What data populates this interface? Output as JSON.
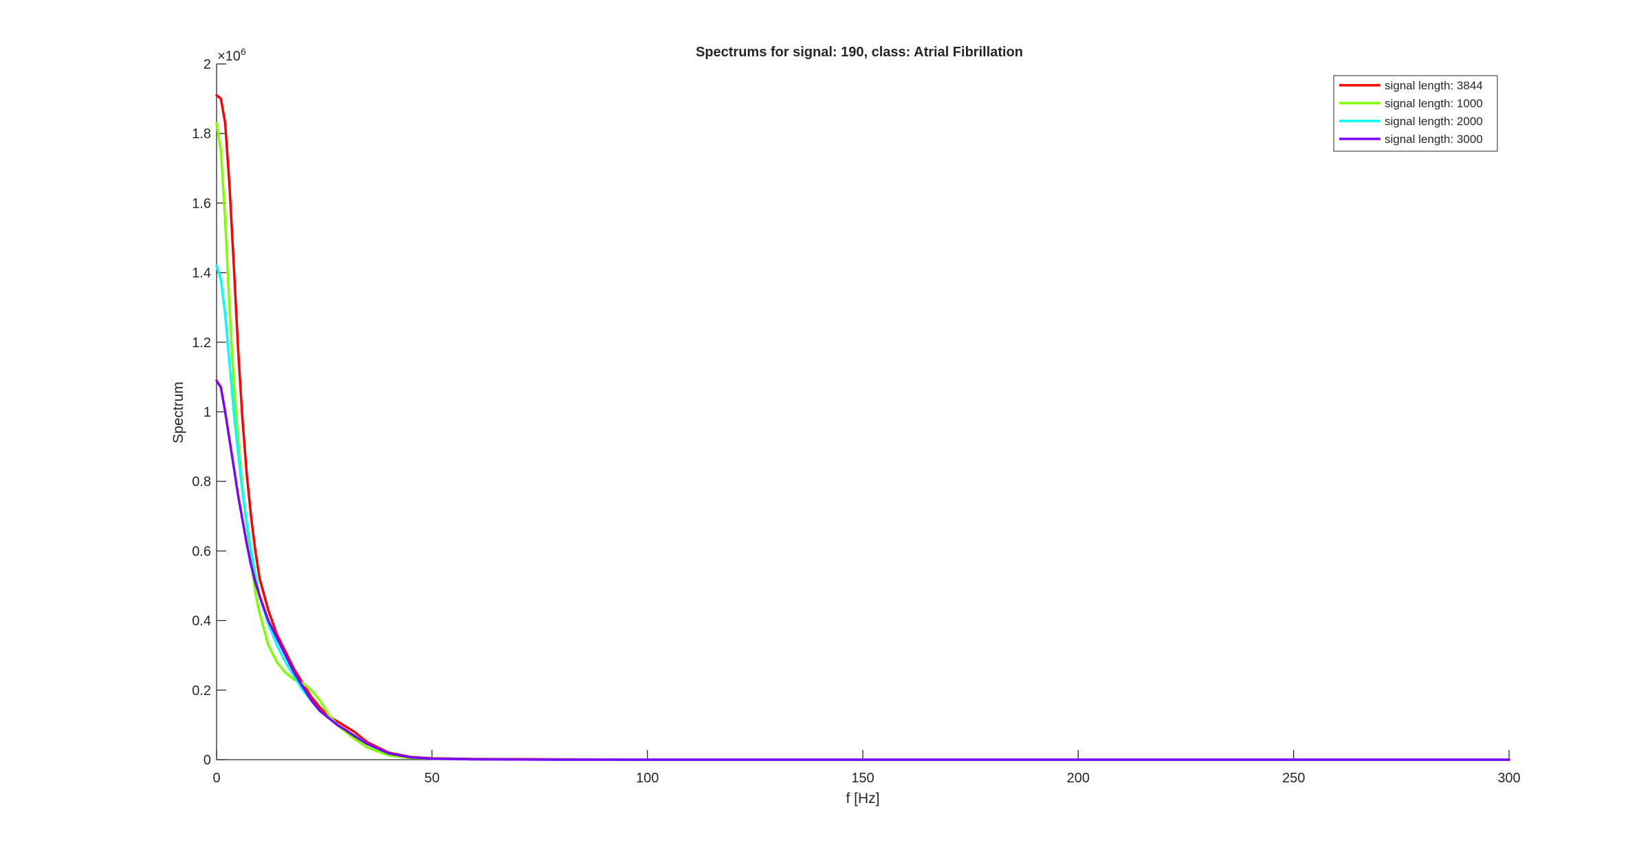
{
  "chart_data": {
    "type": "line",
    "title": "Spectrums for signal: 190, class: Atrial Fibrillation",
    "xlabel": "f [Hz]",
    "ylabel": "Spectrum",
    "y_exponent_label": "×10",
    "y_exponent_power": "6",
    "xlim": [
      0,
      300
    ],
    "ylim": [
      0,
      2
    ],
    "x_ticks": [
      0,
      50,
      100,
      150,
      200,
      250,
      300
    ],
    "x_tick_labels": [
      "0",
      "50",
      "100",
      "150",
      "200",
      "250",
      "300"
    ],
    "y_ticks": [
      0,
      0.2,
      0.4,
      0.6,
      0.8,
      1,
      1.2,
      1.4,
      1.6,
      1.8,
      2
    ],
    "y_tick_labels": [
      "0",
      "0.2",
      "0.4",
      "0.6",
      "0.8",
      "1",
      "1.2",
      "1.4",
      "1.6",
      "1.8",
      "2"
    ],
    "grid": false,
    "legend_position": "top-right",
    "series": [
      {
        "name": "signal length: 3844",
        "color": "#ff0000",
        "x": [
          0,
          1,
          2,
          3,
          4,
          5,
          6,
          7,
          8,
          9,
          10,
          12,
          14,
          16,
          18,
          20,
          22,
          24,
          26,
          28,
          30,
          32,
          35,
          40,
          45,
          50,
          60,
          80,
          100,
          150,
          200,
          250,
          300
        ],
        "y": [
          1.91,
          1.9,
          1.83,
          1.65,
          1.42,
          1.18,
          0.98,
          0.82,
          0.7,
          0.6,
          0.52,
          0.43,
          0.36,
          0.31,
          0.26,
          0.22,
          0.18,
          0.15,
          0.125,
          0.11,
          0.095,
          0.08,
          0.05,
          0.02,
          0.008,
          0.004,
          0.002,
          0.001,
          0.0,
          0.0,
          0.0,
          0.0,
          0.0
        ]
      },
      {
        "name": "signal length: 1000",
        "color": "#80ff00",
        "x": [
          0,
          1,
          2,
          3,
          4,
          5,
          6,
          7,
          8,
          9,
          10,
          12,
          14,
          16,
          18,
          20,
          22,
          24,
          26,
          28,
          30,
          32,
          35,
          40,
          45,
          50,
          60,
          80,
          100,
          150,
          200,
          250,
          300
        ],
        "y": [
          1.83,
          1.75,
          1.55,
          1.3,
          1.08,
          0.92,
          0.78,
          0.67,
          0.57,
          0.48,
          0.42,
          0.33,
          0.28,
          0.25,
          0.23,
          0.22,
          0.2,
          0.17,
          0.13,
          0.1,
          0.08,
          0.06,
          0.035,
          0.012,
          0.005,
          0.003,
          0.001,
          0.0,
          0.0,
          0.0,
          0.0,
          0.0,
          0.0
        ]
      },
      {
        "name": "signal length: 2000",
        "color": "#00ffff",
        "x": [
          0,
          1,
          2,
          3,
          4,
          5,
          6,
          7,
          8,
          9,
          10,
          12,
          14,
          16,
          18,
          20,
          22,
          24,
          26,
          28,
          30,
          32,
          35,
          40,
          45,
          50,
          60,
          80,
          100,
          150,
          200,
          250,
          300
        ],
        "y": [
          1.42,
          1.38,
          1.28,
          1.14,
          1.0,
          0.88,
          0.77,
          0.68,
          0.6,
          0.53,
          0.47,
          0.39,
          0.33,
          0.28,
          0.24,
          0.2,
          0.17,
          0.14,
          0.12,
          0.1,
          0.085,
          0.07,
          0.045,
          0.018,
          0.007,
          0.003,
          0.001,
          0.0,
          0.0,
          0.0,
          0.0,
          0.0,
          0.0
        ]
      },
      {
        "name": "signal length: 3000",
        "color": "#8000ff",
        "x": [
          0,
          1,
          2,
          3,
          4,
          5,
          6,
          7,
          8,
          9,
          10,
          12,
          14,
          16,
          18,
          20,
          22,
          24,
          26,
          28,
          30,
          32,
          35,
          40,
          45,
          50,
          60,
          80,
          100,
          150,
          200,
          250,
          300
        ],
        "y": [
          1.09,
          1.07,
          1.0,
          0.92,
          0.84,
          0.76,
          0.69,
          0.62,
          0.56,
          0.51,
          0.47,
          0.4,
          0.35,
          0.3,
          0.25,
          0.21,
          0.17,
          0.14,
          0.12,
          0.1,
          0.085,
          0.068,
          0.045,
          0.018,
          0.007,
          0.003,
          0.001,
          0.0,
          0.0,
          0.0,
          0.0,
          0.0,
          0.0
        ]
      }
    ]
  }
}
